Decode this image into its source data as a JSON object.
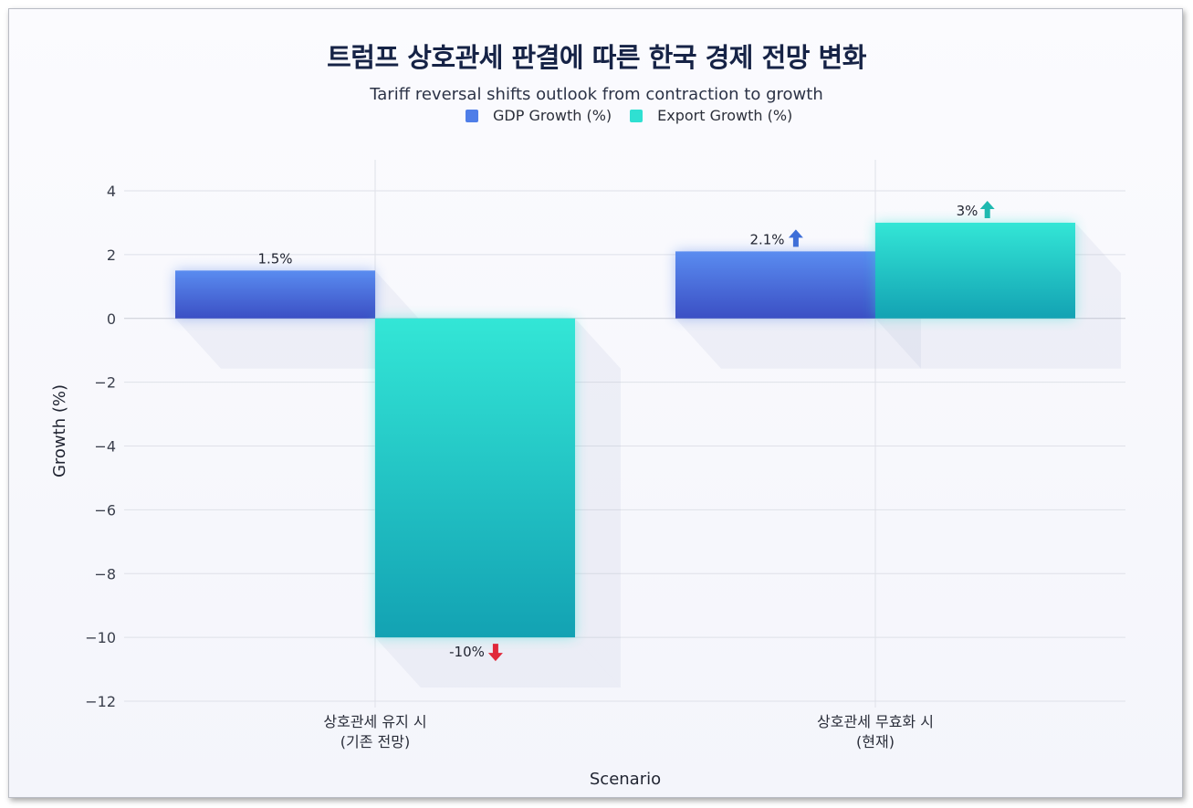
{
  "colors": {
    "gdp": "#4f7ee8",
    "gdp_dark": "#3d52c8",
    "export": "#2fe0d2",
    "export_dark": "#14a7b4",
    "arrow_up_gdp": "#3f6fd8",
    "arrow_up_export": "#1fb9b0",
    "arrow_down": "#e0283a",
    "grid": "#dfe1e8",
    "zero_line": "#c9ccd5"
  },
  "chart_data": {
    "type": "bar",
    "title": "트럼프 상호관세 판결에 따른 한국 경제 전망 변화",
    "subtitle": "Tariff reversal shifts outlook from contraction to growth",
    "xlabel": "Scenario",
    "ylabel": "Growth (%)",
    "ylim": [
      -12,
      5
    ],
    "yticks": [
      "4",
      "2",
      "0",
      "−2",
      "−4",
      "−6",
      "−8",
      "−10",
      "−12"
    ],
    "ytick_values": [
      4,
      2,
      0,
      -2,
      -4,
      -6,
      -8,
      -10,
      -12
    ],
    "grid": true,
    "legend_position": "top-center",
    "categories": [
      [
        "상호관세 유지 시",
        "(기존 전망)"
      ],
      [
        "상호관세 무효화 시",
        "(현재)"
      ]
    ],
    "series": [
      {
        "name": "GDP Growth (%)",
        "values": [
          1.5,
          2.1
        ],
        "labels": [
          "1.5%",
          "2.1%"
        ],
        "arrows": [
          "",
          "up"
        ]
      },
      {
        "name": "Export Growth (%)",
        "values": [
          -10,
          3
        ],
        "labels": [
          "-10%",
          "3%"
        ],
        "arrows": [
          "down",
          "up"
        ]
      }
    ]
  }
}
